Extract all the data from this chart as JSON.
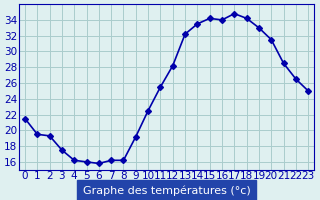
{
  "hours": [
    0,
    1,
    2,
    3,
    4,
    5,
    6,
    7,
    8,
    9,
    10,
    11,
    12,
    13,
    14,
    15,
    16,
    17,
    18,
    19,
    20,
    21,
    22,
    23
  ],
  "temperatures": [
    21.5,
    19.5,
    19.3,
    17.5,
    16.2,
    16.0,
    15.8,
    16.2,
    16.2,
    19.2,
    22.5,
    25.5,
    28.2,
    32.2,
    33.5,
    34.2,
    34.0,
    34.8,
    34.2,
    33.0,
    31.5,
    28.5,
    26.5,
    25.0
  ],
  "line_color": "#0000aa",
  "marker": "D",
  "markersize": 3,
  "linewidth": 1.2,
  "bg_color": "#dff0f0",
  "grid_color": "#aacccc",
  "xlabel": "Graphe des températures (°c)",
  "xlabel_bg": "#2244aa",
  "xlabel_color": "#ffffff",
  "ylim": [
    15,
    36
  ],
  "yticks": [
    16,
    18,
    20,
    22,
    24,
    26,
    28,
    30,
    32,
    34
  ],
  "title_fontsize": 8,
  "tick_fontsize": 7.5,
  "xlabel_fontsize": 8
}
